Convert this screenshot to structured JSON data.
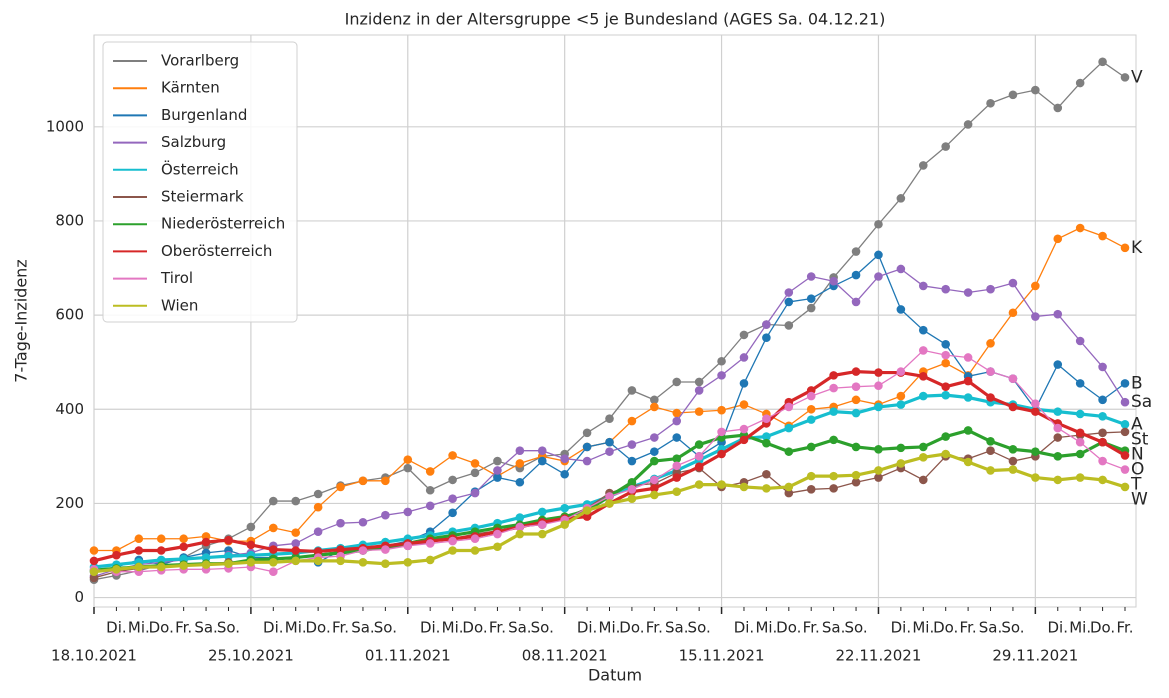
{
  "chart_data": {
    "type": "line",
    "title": "Inzidenz in der Altersgruppe <5 je Bundesland (AGES Sa. 04.12.21)",
    "xlabel": "Datum",
    "ylabel": "7-Tage-Inzidenz",
    "x": [
      "2021-10-18",
      "2021-10-19",
      "2021-10-20",
      "2021-10-21",
      "2021-10-22",
      "2021-10-23",
      "2021-10-24",
      "2021-10-25",
      "2021-10-26",
      "2021-10-27",
      "2021-10-28",
      "2021-10-29",
      "2021-10-30",
      "2021-10-31",
      "2021-11-01",
      "2021-11-02",
      "2021-11-03",
      "2021-11-04",
      "2021-11-05",
      "2021-11-06",
      "2021-11-07",
      "2021-11-08",
      "2021-11-09",
      "2021-11-10",
      "2021-11-11",
      "2021-11-12",
      "2021-11-13",
      "2021-11-14",
      "2021-11-15",
      "2021-11-16",
      "2021-11-17",
      "2021-11-18",
      "2021-11-19",
      "2021-11-20",
      "2021-11-21",
      "2021-11-22",
      "2021-11-23",
      "2021-11-24",
      "2021-11-25",
      "2021-11-26",
      "2021-11-27",
      "2021-11-28",
      "2021-11-29",
      "2021-11-30",
      "2021-12-01",
      "2021-12-02",
      "2021-12-03"
    ],
    "xlim": [
      "2021-10-18",
      "2021-12-03"
    ],
    "xticks": [
      {
        "value": "2021-10-18",
        "label": "18.10.2021"
      },
      {
        "value": "2021-10-25",
        "label": "25.10.2021"
      },
      {
        "value": "2021-11-01",
        "label": "01.11.2021"
      },
      {
        "value": "2021-11-08",
        "label": "08.11.2021"
      },
      {
        "value": "2021-11-15",
        "label": "15.11.2021"
      },
      {
        "value": "2021-11-22",
        "label": "22.11.2021"
      },
      {
        "value": "2021-11-29",
        "label": "29.11.2021"
      }
    ],
    "xminorticks": [
      {
        "value": "2021-10-19",
        "label": "Di."
      },
      {
        "value": "2021-10-20",
        "label": "Mi."
      },
      {
        "value": "2021-10-21",
        "label": "Do."
      },
      {
        "value": "2021-10-22",
        "label": "Fr."
      },
      {
        "value": "2021-10-23",
        "label": "Sa."
      },
      {
        "value": "2021-10-24",
        "label": "So."
      },
      {
        "value": "2021-10-26",
        "label": "Di."
      },
      {
        "value": "2021-10-27",
        "label": "Mi."
      },
      {
        "value": "2021-10-28",
        "label": "Do."
      },
      {
        "value": "2021-10-29",
        "label": "Fr."
      },
      {
        "value": "2021-10-30",
        "label": "Sa."
      },
      {
        "value": "2021-10-31",
        "label": "So."
      },
      {
        "value": "2021-11-02",
        "label": "Di."
      },
      {
        "value": "2021-11-03",
        "label": "Mi."
      },
      {
        "value": "2021-11-04",
        "label": "Do."
      },
      {
        "value": "2021-11-05",
        "label": "Fr."
      },
      {
        "value": "2021-11-06",
        "label": "Sa."
      },
      {
        "value": "2021-11-07",
        "label": "So."
      },
      {
        "value": "2021-11-09",
        "label": "Di."
      },
      {
        "value": "2021-11-10",
        "label": "Mi."
      },
      {
        "value": "2021-11-11",
        "label": "Do."
      },
      {
        "value": "2021-11-12",
        "label": "Fr."
      },
      {
        "value": "2021-11-13",
        "label": "Sa."
      },
      {
        "value": "2021-11-14",
        "label": "So."
      },
      {
        "value": "2021-11-16",
        "label": "Di."
      },
      {
        "value": "2021-11-17",
        "label": "Mi."
      },
      {
        "value": "2021-11-18",
        "label": "Do."
      },
      {
        "value": "2021-11-19",
        "label": "Fr."
      },
      {
        "value": "2021-11-20",
        "label": "Sa."
      },
      {
        "value": "2021-11-21",
        "label": "So."
      },
      {
        "value": "2021-11-23",
        "label": "Di."
      },
      {
        "value": "2021-11-24",
        "label": "Mi."
      },
      {
        "value": "2021-11-25",
        "label": "Do."
      },
      {
        "value": "2021-11-26",
        "label": "Fr."
      },
      {
        "value": "2021-11-27",
        "label": "Sa."
      },
      {
        "value": "2021-11-28",
        "label": "So."
      },
      {
        "value": "2021-11-30",
        "label": "Di."
      },
      {
        "value": "2021-12-01",
        "label": "Mi."
      },
      {
        "value": "2021-12-02",
        "label": "Do."
      },
      {
        "value": "2021-12-03",
        "label": "Fr."
      }
    ],
    "ylim": [
      -20,
      1195
    ],
    "yticks": [
      0,
      200,
      400,
      600,
      800,
      1000
    ],
    "grid": true,
    "legend": "upper left",
    "series": [
      {
        "name": "Vorarlberg",
        "label": "V",
        "color": "#7f7f7f",
        "linewidth": 1.3,
        "values": [
          38,
          47,
          57,
          70,
          85,
          110,
          125,
          150,
          205,
          205,
          220,
          238,
          248,
          255,
          275,
          228,
          250,
          265,
          290,
          275,
          300,
          305,
          350,
          380,
          440,
          420,
          458,
          458,
          502,
          558,
          580,
          578,
          615,
          680,
          735,
          793,
          848,
          918,
          958,
          1005,
          1050,
          1068,
          1078,
          1040,
          1093,
          1138,
          1105
        ]
      },
      {
        "name": "Kärnten",
        "label": "K",
        "color": "#ff7f0e",
        "linewidth": 1.3,
        "values": [
          100,
          100,
          125,
          125,
          125,
          130,
          120,
          120,
          148,
          138,
          192,
          235,
          248,
          248,
          293,
          268,
          302,
          285,
          258,
          285,
          300,
          290,
          320,
          330,
          375,
          405,
          392,
          395,
          398,
          410,
          390,
          365,
          400,
          405,
          420,
          410,
          428,
          480,
          498,
          472,
          540,
          605,
          662,
          762,
          785,
          768,
          743
        ]
      },
      {
        "name": "Burgenland",
        "label": "B",
        "color": "#1f77b4",
        "linewidth": 1.3,
        "values": [
          55,
          65,
          80,
          70,
          85,
          95,
          100,
          85,
          85,
          80,
          75,
          100,
          105,
          110,
          120,
          140,
          180,
          225,
          255,
          245,
          290,
          262,
          320,
          330,
          290,
          310,
          340,
          300,
          330,
          455,
          552,
          628,
          635,
          662,
          685,
          728,
          612,
          568,
          538,
          470,
          480,
          465,
          400,
          495,
          455,
          420,
          455
        ]
      },
      {
        "name": "Salzburg",
        "label": "Sa",
        "color": "#9467bd",
        "linewidth": 1.3,
        "values": [
          45,
          60,
          70,
          75,
          80,
          85,
          90,
          95,
          110,
          115,
          140,
          158,
          160,
          175,
          182,
          195,
          210,
          222,
          270,
          312,
          312,
          295,
          290,
          310,
          325,
          340,
          375,
          440,
          472,
          510,
          580,
          648,
          682,
          672,
          628,
          682,
          698,
          662,
          655,
          648,
          655,
          668,
          597,
          602,
          545,
          490,
          415
        ]
      },
      {
        "name": "Österreich",
        "label": "A",
        "color": "#17becf",
        "linewidth": 3.2,
        "values": [
          65,
          70,
          75,
          80,
          82,
          85,
          88,
          90,
          92,
          95,
          100,
          105,
          112,
          118,
          125,
          132,
          140,
          148,
          158,
          170,
          182,
          190,
          198,
          215,
          235,
          252,
          270,
          292,
          315,
          338,
          342,
          360,
          378,
          395,
          392,
          405,
          410,
          428,
          430,
          425,
          415,
          410,
          400,
          395,
          390,
          385,
          368
        ]
      },
      {
        "name": "Steiermark",
        "label": "St",
        "color": "#8c564b",
        "linewidth": 1.3,
        "values": [
          42,
          55,
          62,
          65,
          70,
          72,
          75,
          78,
          82,
          85,
          92,
          98,
          100,
          105,
          110,
          118,
          125,
          135,
          142,
          150,
          155,
          170,
          190,
          222,
          238,
          242,
          265,
          275,
          235,
          245,
          262,
          222,
          230,
          232,
          245,
          255,
          275,
          250,
          300,
          295,
          312,
          290,
          300,
          340,
          345,
          350,
          352
        ]
      },
      {
        "name": "Niederösterreich",
        "label": "N",
        "color": "#2ca02c",
        "linewidth": 3.2,
        "values": [
          58,
          62,
          65,
          68,
          70,
          72,
          72,
          80,
          82,
          85,
          90,
          95,
          100,
          108,
          115,
          125,
          132,
          140,
          148,
          155,
          165,
          172,
          185,
          215,
          245,
          290,
          295,
          325,
          340,
          345,
          328,
          310,
          320,
          335,
          320,
          315,
          318,
          320,
          342,
          355,
          332,
          315,
          310,
          300,
          305,
          330,
          312
        ]
      },
      {
        "name": "Oberösterreich",
        "label": "O",
        "color": "#d62728",
        "linewidth": 3.2,
        "values": [
          78,
          90,
          100,
          100,
          108,
          118,
          122,
          112,
          102,
          100,
          98,
          102,
          105,
          110,
          115,
          120,
          125,
          130,
          140,
          150,
          160,
          168,
          172,
          200,
          225,
          232,
          255,
          278,
          305,
          335,
          370,
          415,
          440,
          472,
          480,
          478,
          478,
          470,
          448,
          460,
          425,
          405,
          395,
          370,
          350,
          330,
          302
        ]
      },
      {
        "name": "Tirol",
        "label": "T",
        "color": "#e377c2",
        "linewidth": 1.3,
        "values": [
          60,
          55,
          55,
          58,
          60,
          60,
          62,
          65,
          55,
          78,
          85,
          88,
          100,
          102,
          110,
          115,
          120,
          125,
          135,
          150,
          155,
          165,
          190,
          215,
          230,
          250,
          280,
          300,
          352,
          358,
          380,
          405,
          428,
          445,
          448,
          450,
          480,
          525,
          515,
          510,
          480,
          465,
          412,
          360,
          330,
          290,
          272
        ]
      },
      {
        "name": "Wien",
        "label": "W",
        "color": "#bcbd22",
        "linewidth": 3.2,
        "values": [
          55,
          60,
          65,
          65,
          68,
          70,
          72,
          75,
          75,
          78,
          78,
          78,
          75,
          72,
          75,
          80,
          100,
          100,
          108,
          135,
          135,
          155,
          185,
          200,
          210,
          218,
          225,
          240,
          240,
          235,
          232,
          235,
          258,
          258,
          260,
          270,
          285,
          298,
          305,
          288,
          270,
          272,
          255,
          250,
          255,
          250,
          235
        ]
      }
    ]
  }
}
